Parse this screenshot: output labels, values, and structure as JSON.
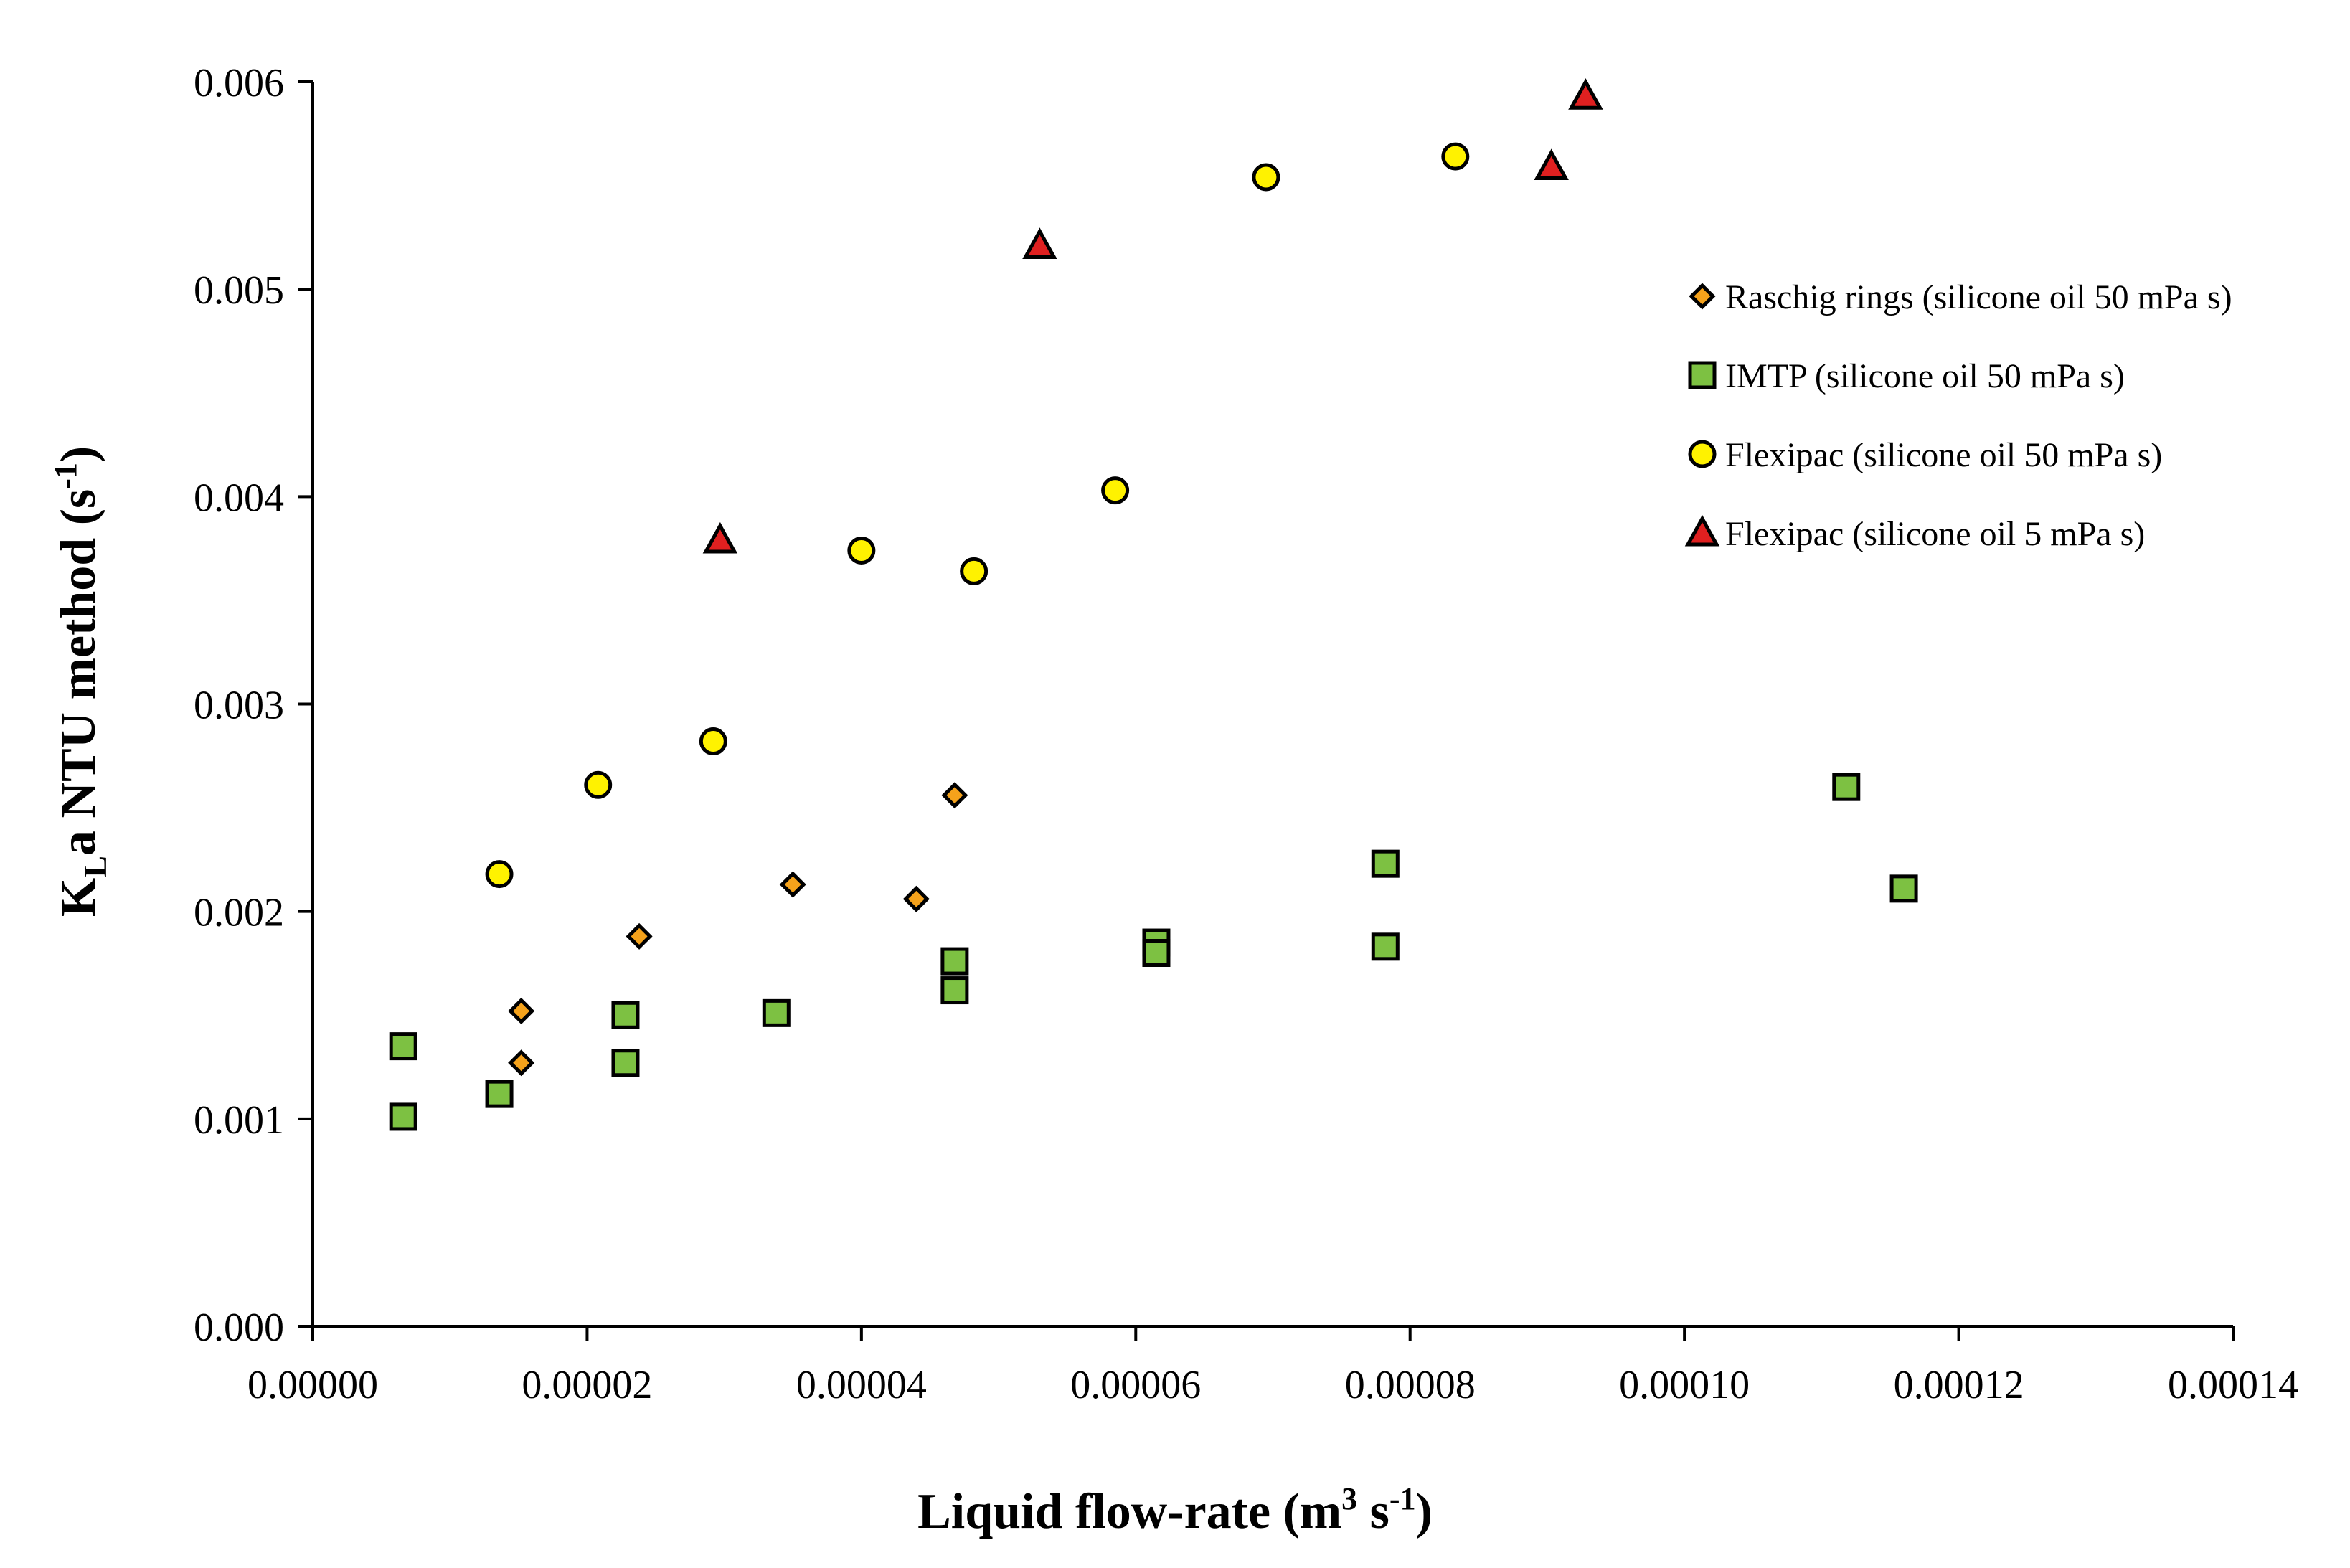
{
  "chart_data": {
    "type": "scatter",
    "title": "",
    "xlabel": {
      "main": "Liquid flow-rate (m",
      "sup1": "3",
      "mid": " s",
      "sup2": "-1",
      "end": ")"
    },
    "ylabel": {
      "k": "K",
      "sub": "L",
      "main": "a NTU method (s",
      "sup": "-1",
      "end": ")"
    },
    "xlim": [
      0,
      0.00014
    ],
    "ylim": [
      0,
      0.006
    ],
    "x_ticks": [
      0,
      2e-05,
      4e-05,
      6e-05,
      8e-05,
      0.0001,
      0.00012,
      0.00014
    ],
    "x_tick_labels": [
      "0.00000",
      "0.00002",
      "0.00004",
      "0.00006",
      "0.00008",
      "0.00010",
      "0.00012",
      "0.00014"
    ],
    "y_ticks": [
      0,
      0.001,
      0.002,
      0.003,
      0.004,
      0.005,
      0.006
    ],
    "y_tick_labels": [
      "0.000",
      "0.001",
      "0.002",
      "0.003",
      "0.004",
      "0.005",
      "0.006"
    ],
    "grid": false,
    "legend_position": "top-right",
    "series": [
      {
        "name": "Raschig rings (silicone oil 50 mPa s)",
        "marker": "diamond",
        "color": "#F5A21B",
        "points": [
          [
            1.52e-05,
            0.00152
          ],
          [
            1.52e-05,
            0.00127
          ],
          [
            2.38e-05,
            0.00188
          ],
          [
            3.5e-05,
            0.00213
          ],
          [
            4.4e-05,
            0.00206
          ],
          [
            4.68e-05,
            0.00256
          ]
        ]
      },
      {
        "name": "IMTP (silicone oil 50 mPa s)",
        "marker": "square",
        "color": "#7DC142",
        "points": [
          [
            6.6e-06,
            0.00135
          ],
          [
            6.6e-06,
            0.00101
          ],
          [
            1.36e-05,
            0.00112
          ],
          [
            2.28e-05,
            0.0015
          ],
          [
            2.28e-05,
            0.00127
          ],
          [
            3.38e-05,
            0.00151
          ],
          [
            4.68e-05,
            0.00176
          ],
          [
            4.68e-05,
            0.00162
          ],
          [
            6.15e-05,
            0.00185
          ],
          [
            6.15e-05,
            0.0018
          ],
          [
            7.82e-05,
            0.00223
          ],
          [
            7.82e-05,
            0.00183
          ],
          [
            0.0001118,
            0.0026
          ],
          [
            0.000116,
            0.00211
          ]
        ]
      },
      {
        "name": "Flexipac (silicone oil 50 mPa s)",
        "marker": "circle",
        "color": "#FFF200",
        "points": [
          [
            1.36e-05,
            0.00218
          ],
          [
            2.08e-05,
            0.00261
          ],
          [
            2.92e-05,
            0.00282
          ],
          [
            4e-05,
            0.00374
          ],
          [
            4.82e-05,
            0.00364
          ],
          [
            5.85e-05,
            0.00403
          ],
          [
            6.95e-05,
            0.00554
          ],
          [
            8.33e-05,
            0.00564
          ]
        ]
      },
      {
        "name": "Flexipac (silicone oil 5 mPa s)",
        "marker": "triangle",
        "color": "#E02020",
        "points": [
          [
            2.97e-05,
            0.00379
          ],
          [
            5.3e-05,
            0.00521
          ],
          [
            9.03e-05,
            0.00559
          ],
          [
            9.28e-05,
            0.00593
          ]
        ]
      }
    ]
  }
}
